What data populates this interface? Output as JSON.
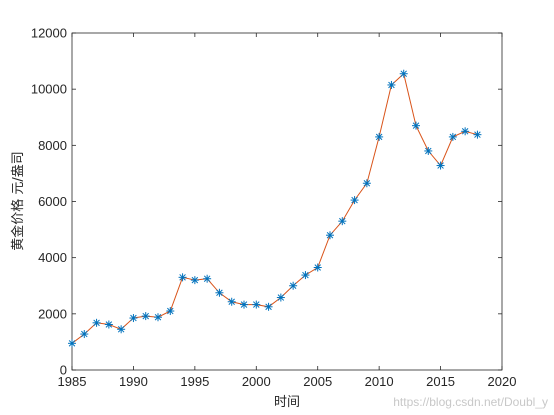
{
  "chart_data": {
    "type": "line",
    "title": "",
    "xlabel": "时间",
    "ylabel": "黄金价格 元/盎司",
    "xlim": [
      1985,
      2020
    ],
    "ylim": [
      0,
      12000
    ],
    "xticks": [
      1985,
      1990,
      1995,
      2000,
      2005,
      2010,
      2015,
      2020
    ],
    "yticks": [
      0,
      2000,
      4000,
      6000,
      8000,
      10000,
      12000
    ],
    "x_tick_labels": [
      "1985",
      "1990",
      "1995",
      "2000",
      "2005",
      "2010",
      "2015",
      "2020"
    ],
    "y_tick_labels": [
      "0",
      "2000",
      "4000",
      "6000",
      "8000",
      "10000",
      "12000"
    ],
    "grid": false,
    "legend": "none",
    "series": [
      {
        "line_color": "#d95319",
        "marker": "*",
        "marker_color": "#0072bd",
        "x": [
          1985,
          1986,
          1987,
          1988,
          1989,
          1990,
          1991,
          1992,
          1993,
          1994,
          1995,
          1996,
          1997,
          1998,
          1999,
          2000,
          2001,
          2002,
          2003,
          2004,
          2005,
          2006,
          2007,
          2008,
          2009,
          2010,
          2011,
          2012,
          2013,
          2014,
          2015,
          2016,
          2017,
          2018
        ],
        "y": [
          950,
          1280,
          1680,
          1620,
          1450,
          1850,
          1920,
          1880,
          2100,
          3300,
          3200,
          3250,
          2750,
          2430,
          2330,
          2330,
          2250,
          2580,
          3000,
          3380,
          3650,
          4800,
          5300,
          6050,
          6650,
          8300,
          10150,
          10550,
          8700,
          7800,
          7280,
          8300,
          8500,
          8380
        ]
      }
    ]
  },
  "watermark": "https://blog.csdn.net/Doubl_y"
}
